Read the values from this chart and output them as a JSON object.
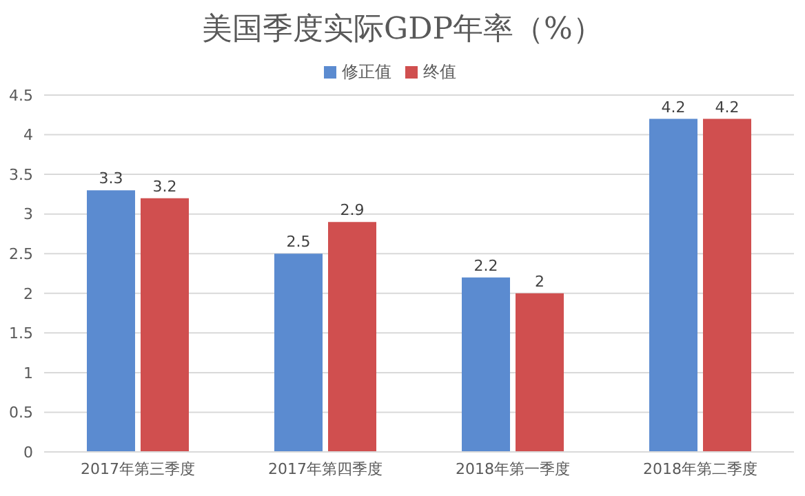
{
  "chart_data": {
    "type": "bar",
    "title": "美国季度实际GDP年率（%）",
    "categories": [
      "2017年第三季度",
      "2017年第四季度",
      "2018年第一季度",
      "2018年第二季度"
    ],
    "series": [
      {
        "name": "修正值",
        "color": "#5b8bd0",
        "values": [
          3.3,
          2.5,
          2.2,
          4.2
        ]
      },
      {
        "name": "终值",
        "color": "#d04f4f",
        "values": [
          3.2,
          2.9,
          2,
          4.2
        ]
      }
    ],
    "ylim": [
      0,
      4.5
    ],
    "yticks": [
      0,
      0.5,
      1,
      1.5,
      2,
      2.5,
      3,
      3.5,
      4,
      4.5
    ],
    "grid": "y",
    "legend": "top",
    "data_labels": true
  }
}
